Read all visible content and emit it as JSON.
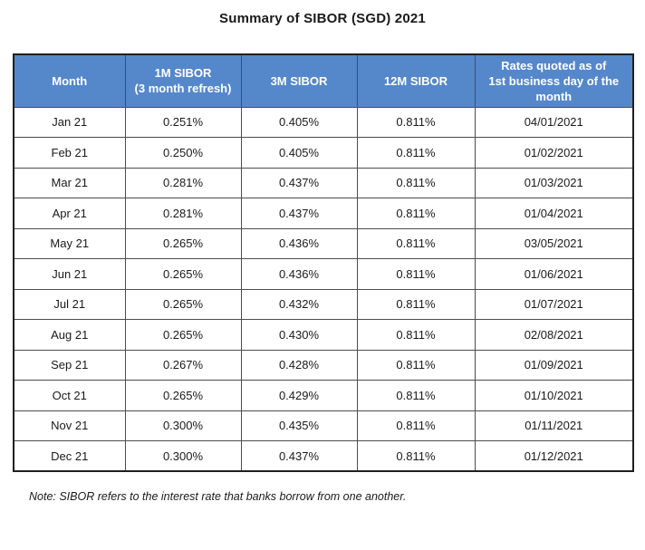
{
  "title": "Summary of SIBOR (SGD) 2021",
  "table": {
    "headers": [
      "Month",
      "1M SIBOR\n(3 month refresh)",
      "3M SIBOR",
      "12M SIBOR",
      "Rates quoted as of\n1st business day of the\nmonth"
    ],
    "rows": [
      [
        "Jan 21",
        "0.251%",
        "0.405%",
        "0.811%",
        "04/01/2021"
      ],
      [
        "Feb 21",
        "0.250%",
        "0.405%",
        "0.811%",
        "01/02/2021"
      ],
      [
        "Mar 21",
        "0.281%",
        "0.437%",
        "0.811%",
        "01/03/2021"
      ],
      [
        "Apr 21",
        "0.281%",
        "0.437%",
        "0.811%",
        "01/04/2021"
      ],
      [
        "May 21",
        "0.265%",
        "0.436%",
        "0.811%",
        "03/05/2021"
      ],
      [
        "Jun 21",
        "0.265%",
        "0.436%",
        "0.811%",
        "01/06/2021"
      ],
      [
        "Jul 21",
        "0.265%",
        "0.432%",
        "0.811%",
        "01/07/2021"
      ],
      [
        "Aug 21",
        "0.265%",
        "0.430%",
        "0.811%",
        "02/08/2021"
      ],
      [
        "Sep 21",
        "0.267%",
        "0.428%",
        "0.811%",
        "01/09/2021"
      ],
      [
        "Oct 21",
        "0.265%",
        "0.429%",
        "0.811%",
        "01/10/2021"
      ],
      [
        "Nov 21",
        "0.300%",
        "0.435%",
        "0.811%",
        "01/11/2021"
      ],
      [
        "Dec 21",
        "0.300%",
        "0.437%",
        "0.811%",
        "01/12/2021"
      ]
    ]
  },
  "note": "Note: SIBOR refers to the interest rate that banks borrow from one another.",
  "colors": {
    "header_bg": "#5587cb",
    "header_text": "#ffffff",
    "outer_border": "#1f1f1f",
    "inner_border": "#4d4d4d"
  }
}
